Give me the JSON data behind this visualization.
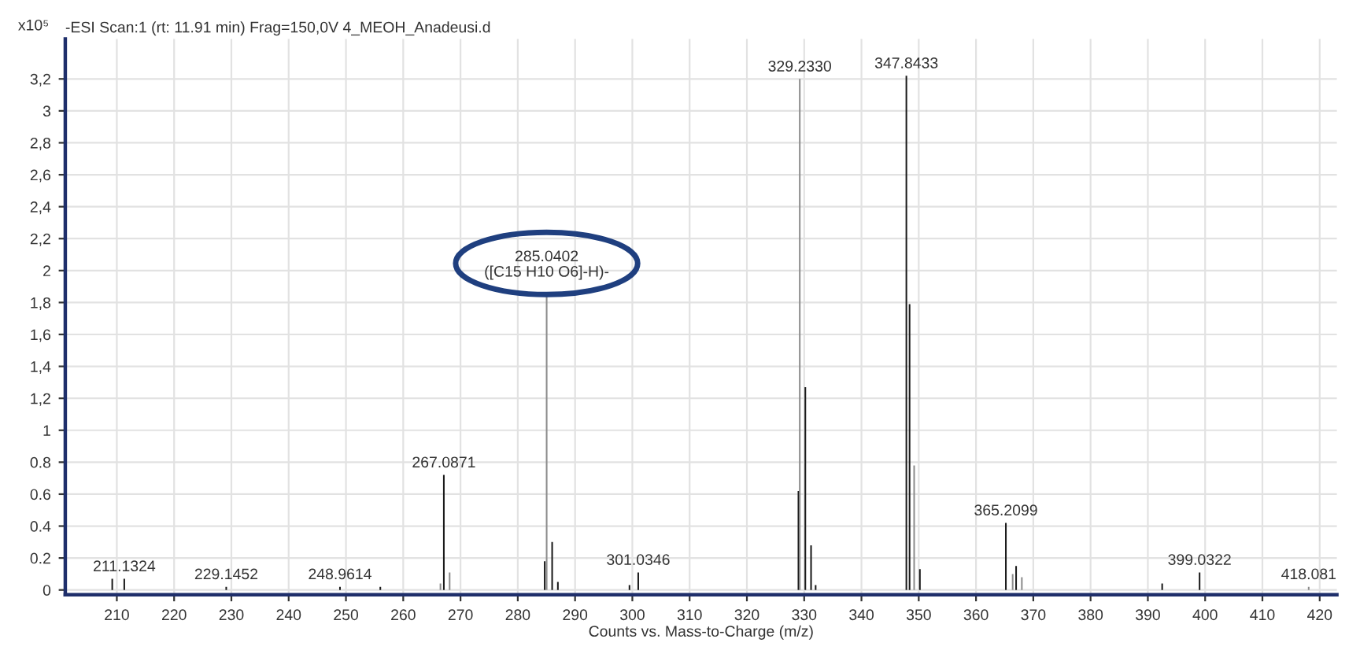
{
  "chart_data": {
    "type": "bar",
    "title": "-ESI Scan:1 (rt: 11.91 min) Frag=150,0V 4_MEOH_Anadeusi.d",
    "xlabel": "Counts vs. Mass-to-Charge (m/z)",
    "ylabel": "x10⁵",
    "x": [
      209.2,
      211.3,
      229.1,
      248.96,
      256.0,
      266.5,
      267.09,
      268.1,
      284.7,
      285.04,
      286.0,
      287.0,
      299.5,
      301.03,
      329.0,
      329.23,
      330.2,
      331.2,
      332.0,
      347.84,
      348.4,
      349.2,
      350.2,
      365.21,
      366.4,
      367.0,
      368.0,
      392.5,
      399.03,
      418.08
    ],
    "values": [
      0.07,
      0.07,
      0.02,
      0.02,
      0.02,
      0.04,
      0.72,
      0.11,
      0.18,
      1.86,
      0.3,
      0.05,
      0.03,
      0.11,
      0.62,
      3.2,
      1.27,
      0.28,
      0.03,
      3.22,
      1.79,
      0.78,
      0.13,
      0.42,
      0.1,
      0.15,
      0.08,
      0.04,
      0.11,
      0.02
    ],
    "colors": [
      "#1a1a1a",
      "#1a1a1a",
      "#1a1a1a",
      "#1a1a1a",
      "#1a1a1a",
      "#8c8c8c",
      "#1a1a1a",
      "#8c8c8c",
      "#1a1a1a",
      "#8c8c8c",
      "#1a1a1a",
      "#1a1a1a",
      "#1a1a1a",
      "#1a1a1a",
      "#1a1a1a",
      "#8c8c8c",
      "#1a1a1a",
      "#1a1a1a",
      "#1a1a1a",
      "#1a1a1a",
      "#1a1a1a",
      "#8c8c8c",
      "#1a1a1a",
      "#1a1a1a",
      "#8c8c8c",
      "#1a1a1a",
      "#8c8c8c",
      "#1a1a1a",
      "#1a1a1a",
      "#8c8c8c"
    ],
    "annotations": [
      {
        "text": "211.1324",
        "x": 211.3,
        "y": 0.07
      },
      {
        "text": "229.1452",
        "x": 229.1,
        "y": 0.02
      },
      {
        "text": "248.9614",
        "x": 248.96,
        "y": 0.02
      },
      {
        "text": "267.0871",
        "x": 267.09,
        "y": 0.72
      },
      {
        "text": "285.0402\n([C15 H10 O6]-H)-",
        "x": 285.04,
        "y": 1.86
      },
      {
        "text": "301.0346",
        "x": 301.03,
        "y": 0.11
      },
      {
        "text": "329.2330",
        "x": 329.23,
        "y": 3.2
      },
      {
        "text": "347.8433",
        "x": 347.84,
        "y": 3.22
      },
      {
        "text": "365.2099",
        "x": 365.21,
        "y": 0.42
      },
      {
        "text": "399.0322",
        "x": 399.03,
        "y": 0.11
      },
      {
        "text": "418.081",
        "x": 418.08,
        "y": 0.02
      }
    ],
    "xlim": [
      201,
      423
    ],
    "xticks": [
      210,
      220,
      230,
      240,
      250,
      260,
      270,
      280,
      290,
      300,
      310,
      320,
      330,
      340,
      350,
      360,
      370,
      380,
      390,
      400,
      410,
      420
    ],
    "ylim": [
      -0.03,
      3.45
    ],
    "yticks": [
      {
        "value": 0,
        "label": "0"
      },
      {
        "value": 0.2,
        "label": "0.2"
      },
      {
        "value": 0.4,
        "label": "0.4"
      },
      {
        "value": 0.6,
        "label": "0.6"
      },
      {
        "value": 0.8,
        "label": "0.8"
      },
      {
        "value": 1,
        "label": "1"
      },
      {
        "value": 1.2,
        "label": "1,2"
      },
      {
        "value": 1.4,
        "label": "1,4"
      },
      {
        "value": 1.6,
        "label": "1,6"
      },
      {
        "value": 1.8,
        "label": "1,8"
      },
      {
        "value": 2,
        "label": "2"
      },
      {
        "value": 2.2,
        "label": "2,2"
      },
      {
        "value": 2.4,
        "label": "2,4"
      },
      {
        "value": 2.6,
        "label": "2,6"
      },
      {
        "value": 2.8,
        "label": "2,8"
      },
      {
        "value": 3,
        "label": "3"
      },
      {
        "value": 3.2,
        "label": "3,2"
      }
    ],
    "grid": true
  }
}
